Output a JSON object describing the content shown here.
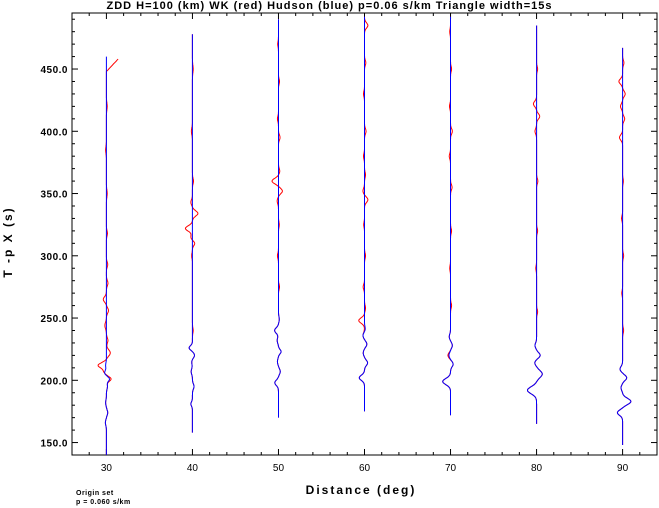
{
  "title": "ZDD H=100 (km) WK (red) Hudson (blue) p=0.06 s/km Triangle width=15s",
  "footnote": {
    "line1": "Origin set",
    "line2": "p = 0.060 s/km"
  },
  "chart_data": {
    "type": "line",
    "title": "ZDD H=100 (km) WK (red) Hudson (blue) p=0.06 s/km Triangle width=15s",
    "xlabel": "Distance (deg)",
    "ylabel": "T -p X (s)",
    "xlim": [
      26,
      94
    ],
    "ylim": [
      140,
      495
    ],
    "xticks": [
      30,
      40,
      50,
      60,
      70,
      80,
      90
    ],
    "yticks": [
      150.0,
      200.0,
      250.0,
      300.0,
      350.0,
      400.0,
      450.0
    ],
    "ytick_labels": [
      "150.0",
      "200.0",
      "250.0",
      "300.0",
      "350.0",
      "400.0",
      "450.0"
    ],
    "colors": {
      "wk": "#ff0000",
      "hudson": "#0000ff"
    },
    "traces": [
      {
        "distance": 30,
        "hudson": {
          "t_start": 140,
          "t_end": 460,
          "pulses": [
            [
              166,
              -0.4,
              3
            ],
            [
              174,
              0.5,
              3
            ],
            [
              182,
              -0.3,
              3
            ],
            [
              195,
              0.4,
              3
            ],
            [
              201,
              1.2,
              2.5
            ],
            [
              206,
              -0.7,
              2.5
            ],
            [
              212,
              -0.3,
              3
            ]
          ]
        },
        "wk": {
          "t_start": 140,
          "t_end": 458,
          "pulses": [
            [
              166,
              -0.4,
              3
            ],
            [
              174,
              0.5,
              3
            ],
            [
              182,
              -0.3,
              3
            ],
            [
              195,
              0.4,
              3
            ],
            [
              201,
              1.8,
              2.5
            ],
            [
              207,
              -0.9,
              2.5
            ],
            [
              212,
              -3.2,
              3
            ],
            [
              222,
              1.5,
              3.5
            ],
            [
              232,
              0.6,
              3
            ],
            [
              244,
              -0.6,
              3.5
            ],
            [
              256,
              0.8,
              3
            ],
            [
              265,
              -1.2,
              3
            ],
            [
              278,
              0.6,
              3
            ],
            [
              293,
              0.5,
              3
            ],
            [
              318,
              0.4,
              3
            ],
            [
              350,
              0.3,
              4
            ],
            [
              385,
              -0.3,
              4
            ],
            [
              420,
              0.3,
              4
            ]
          ],
          "tail": {
            "t_from": 448,
            "t_to": 458,
            "offset_to": 4.5
          }
        }
      },
      {
        "distance": 40,
        "hudson": {
          "t_start": 158,
          "t_end": 478,
          "pulses": [
            [
              181,
              -0.6,
              2.5
            ],
            [
              195,
              0.6,
              3
            ],
            [
              207,
              -0.5,
              3
            ],
            [
              215,
              -0.3,
              3
            ],
            [
              220,
              0.8,
              3
            ],
            [
              226,
              -1.3,
              2.5
            ]
          ]
        },
        "wk": {
          "t_start": 158,
          "t_end": 478,
          "pulses": [
            [
              181,
              -0.6,
              2.5
            ],
            [
              195,
              0.6,
              3
            ],
            [
              207,
              -0.5,
              3
            ],
            [
              215,
              -0.3,
              3
            ],
            [
              220,
              0.8,
              3
            ],
            [
              226,
              -1.3,
              2.5
            ],
            [
              240,
              0.3,
              3
            ],
            [
              300,
              -0.3,
              3
            ],
            [
              310,
              0.9,
              2.5
            ],
            [
              315,
              -0.6,
              3
            ],
            [
              322,
              -2.7,
              3
            ],
            [
              334,
              2.1,
              3
            ],
            [
              343,
              -0.6,
              3
            ],
            [
              360,
              0.4,
              3
            ],
            [
              400,
              -0.4,
              4
            ],
            [
              450,
              0.3,
              4
            ]
          ]
        }
      },
      {
        "distance": 50,
        "hudson": {
          "t_start": 170,
          "t_end": 490,
          "pulses": [
            [
              198,
              -1.4,
              3
            ],
            [
              207,
              0.7,
              3
            ],
            [
              215,
              -0.4,
              3
            ],
            [
              223,
              1.0,
              2.5
            ],
            [
              232,
              -0.5,
              3
            ],
            [
              240,
              -1.5,
              3
            ],
            [
              249,
              0.3,
              3
            ]
          ]
        },
        "wk": {
          "t_start": 170,
          "t_end": 490,
          "pulses": [
            [
              198,
              -1.4,
              3
            ],
            [
              207,
              0.7,
              3
            ],
            [
              215,
              -0.4,
              3
            ],
            [
              223,
              1.0,
              2.5
            ],
            [
              232,
              -0.5,
              3
            ],
            [
              240,
              -1.5,
              3
            ],
            [
              249,
              0.3,
              3
            ],
            [
              275,
              0.4,
              3
            ],
            [
              300,
              -0.4,
              3
            ],
            [
              325,
              0.3,
              3
            ],
            [
              344,
              -0.5,
              3
            ],
            [
              352,
              1.5,
              3
            ],
            [
              360,
              -2.5,
              3
            ],
            [
              368,
              0.5,
              3
            ],
            [
              395,
              0.6,
              3
            ],
            [
              410,
              -0.4,
              3
            ],
            [
              440,
              0.4,
              3
            ],
            [
              470,
              -0.3,
              3
            ]
          ]
        }
      },
      {
        "distance": 60,
        "hudson": {
          "t_start": 175,
          "t_end": 492,
          "pulses": [
            [
              202,
              -2.0,
              3
            ],
            [
              214,
              1.2,
              3
            ],
            [
              222,
              -0.5,
              3
            ],
            [
              229,
              0.9,
              3
            ],
            [
              236,
              -0.6,
              3
            ],
            [
              241,
              0.3,
              3
            ]
          ]
        },
        "wk": {
          "t_start": 175,
          "t_end": 492,
          "pulses": [
            [
              202,
              -2.0,
              3
            ],
            [
              214,
              1.2,
              3
            ],
            [
              222,
              -0.5,
              3
            ],
            [
              229,
              0.9,
              3
            ],
            [
              236,
              -0.6,
              3
            ],
            [
              248,
              -2.2,
              3
            ],
            [
              258,
              0.4,
              3
            ],
            [
              275,
              -0.5,
              3
            ],
            [
              300,
              0.4,
              3
            ],
            [
              325,
              -0.3,
              3
            ],
            [
              345,
              1.3,
              3
            ],
            [
              352,
              -0.6,
              3
            ],
            [
              365,
              0.4,
              3
            ],
            [
              380,
              -0.4,
              3
            ],
            [
              400,
              0.6,
              3
            ],
            [
              430,
              -0.4,
              3
            ],
            [
              455,
              0.5,
              3
            ],
            [
              485,
              1.3,
              3
            ]
          ]
        }
      },
      {
        "distance": 70,
        "hudson": {
          "t_start": 172,
          "t_end": 492,
          "pulses": [
            [
              199,
              -3.0,
              3.5
            ],
            [
              213,
              1.0,
              3
            ],
            [
              220,
              -0.6,
              3
            ],
            [
              228,
              0.7,
              3
            ],
            [
              235,
              -0.5,
              3
            ]
          ]
        },
        "wk": {
          "t_start": 172,
          "t_end": 492,
          "pulses": [
            [
              199,
              -3.0,
              3.5
            ],
            [
              213,
              1.0,
              3
            ],
            [
              220,
              -1.0,
              3
            ],
            [
              228,
              0.7,
              3
            ],
            [
              235,
              -0.5,
              3
            ],
            [
              260,
              0.4,
              3
            ],
            [
              290,
              -0.3,
              3
            ],
            [
              320,
              0.4,
              3
            ],
            [
              355,
              0.6,
              3
            ],
            [
              380,
              -0.5,
              3
            ],
            [
              400,
              0.7,
              3
            ],
            [
              420,
              -0.4,
              3
            ],
            [
              450,
              0.4,
              3
            ],
            [
              480,
              -0.3,
              3
            ]
          ]
        }
      },
      {
        "distance": 80,
        "hudson": {
          "t_start": 165,
          "t_end": 485,
          "pulses": [
            [
              192,
              -3.5,
              4
            ],
            [
              205,
              2.2,
              4
            ],
            [
              214,
              -0.7,
              3
            ],
            [
              220,
              1.4,
              3
            ],
            [
              228,
              -0.6,
              3
            ]
          ]
        },
        "wk": {
          "t_start": 165,
          "t_end": 485,
          "pulses": [
            [
              192,
              -3.5,
              4
            ],
            [
              205,
              2.2,
              4
            ],
            [
              214,
              -0.7,
              3
            ],
            [
              220,
              1.4,
              3
            ],
            [
              228,
              -0.6,
              3
            ],
            [
              255,
              0.4,
              3
            ],
            [
              290,
              -0.3,
              3
            ],
            [
              320,
              0.4,
              3
            ],
            [
              360,
              0.5,
              3
            ],
            [
              400,
              -0.6,
              3
            ],
            [
              412,
              1.2,
              3
            ],
            [
              422,
              -1.2,
              3
            ],
            [
              450,
              0.4,
              3
            ]
          ]
        }
      },
      {
        "distance": 90,
        "hudson": {
          "t_start": 148,
          "t_end": 467,
          "pulses": [
            [
              174,
              -2.0,
              3
            ],
            [
              183,
              3.2,
              3.5
            ],
            [
              194,
              -0.6,
              3
            ],
            [
              202,
              1.6,
              3
            ],
            [
              209,
              -1.0,
              3
            ]
          ]
        },
        "wk": {
          "t_start": 148,
          "t_end": 467,
          "pulses": [
            [
              174,
              -2.0,
              3
            ],
            [
              183,
              3.2,
              3.5
            ],
            [
              194,
              -0.6,
              3
            ],
            [
              202,
              1.6,
              3
            ],
            [
              209,
              -1.0,
              3
            ],
            [
              240,
              0.4,
              3
            ],
            [
              270,
              -0.3,
              3
            ],
            [
              300,
              0.4,
              3
            ],
            [
              330,
              -0.4,
              3
            ],
            [
              360,
              0.3,
              3
            ],
            [
              395,
              -1.2,
              3
            ],
            [
              410,
              0.8,
              3
            ],
            [
              420,
              -0.8,
              3
            ],
            [
              430,
              1.0,
              3
            ],
            [
              440,
              -1.4,
              3
            ],
            [
              455,
              0.5,
              3
            ]
          ]
        }
      }
    ]
  }
}
